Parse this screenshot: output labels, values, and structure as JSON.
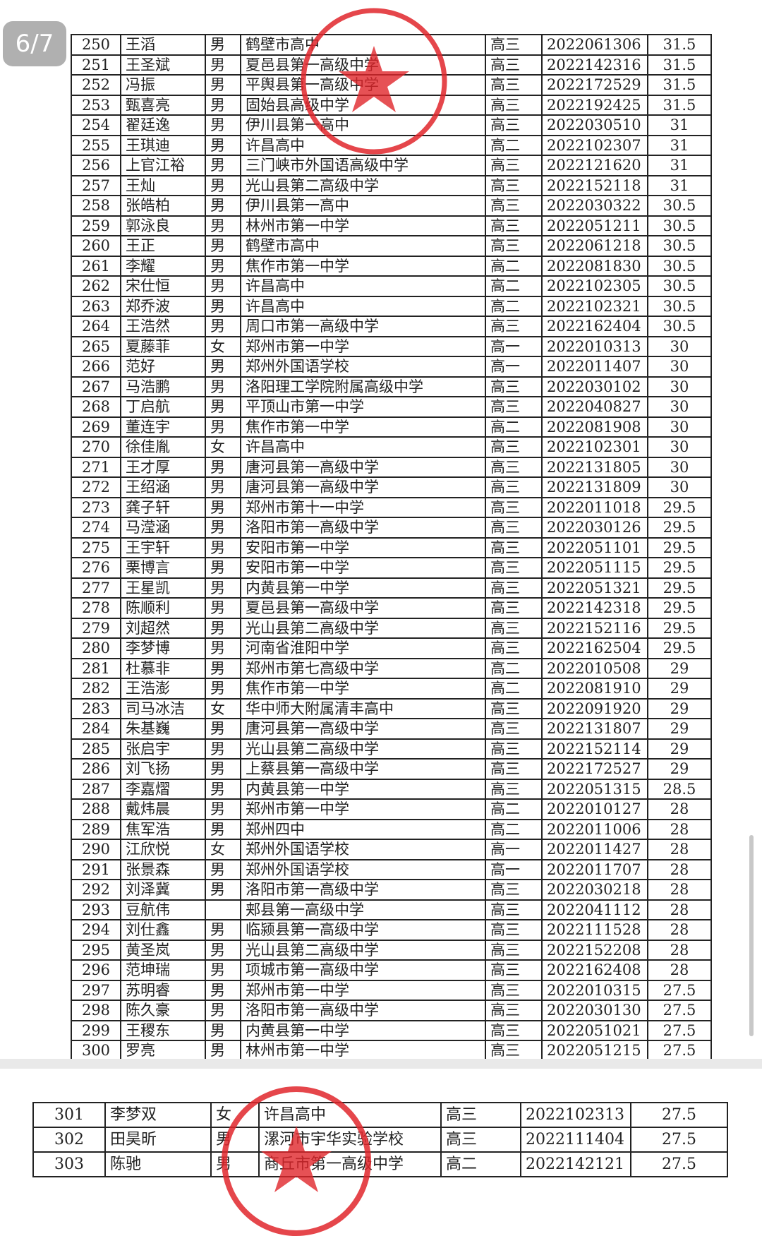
{
  "page_indicator": "6/7",
  "colors": {
    "stamp": "#e0262b",
    "table_border": "#222222",
    "separator": "#e9e9e9"
  },
  "main_rows": [
    [
      "250",
      "王滔",
      "男",
      "鹤壁市高中",
      "高三",
      "2022061306",
      "31.5"
    ],
    [
      "251",
      "王圣斌",
      "男",
      "夏邑县第一高级中学",
      "高三",
      "2022142316",
      "31.5"
    ],
    [
      "252",
      "冯振",
      "男",
      "平舆县第一高级中学",
      "高三",
      "2022172529",
      "31.5"
    ],
    [
      "253",
      "甄喜亮",
      "男",
      "固始县高级中学",
      "高三",
      "2022192425",
      "31.5"
    ],
    [
      "254",
      "翟廷逸",
      "男",
      "伊川县第一高中",
      "高三",
      "2022030510",
      "31"
    ],
    [
      "255",
      "王琪迪",
      "男",
      "许昌高中",
      "高二",
      "2022102307",
      "31"
    ],
    [
      "256",
      "上官江裕",
      "男",
      "三门峡市外国语高级中学",
      "高三",
      "2022121620",
      "31"
    ],
    [
      "257",
      "王灿",
      "男",
      "光山县第二高级中学",
      "高三",
      "2022152118",
      "31"
    ],
    [
      "258",
      "张皓柏",
      "男",
      "伊川县第一高中",
      "高三",
      "2022030322",
      "30.5"
    ],
    [
      "259",
      "郭泳良",
      "男",
      "林州市第一中学",
      "高三",
      "2022051211",
      "30.5"
    ],
    [
      "260",
      "王正",
      "男",
      "鹤壁市高中",
      "高三",
      "2022061218",
      "30.5"
    ],
    [
      "261",
      "李耀",
      "男",
      "焦作市第一中学",
      "高二",
      "2022081830",
      "30.5"
    ],
    [
      "262",
      "宋仕恒",
      "男",
      "许昌高中",
      "高二",
      "2022102305",
      "30.5"
    ],
    [
      "263",
      "郑乔波",
      "男",
      "许昌高中",
      "高二",
      "2022102321",
      "30.5"
    ],
    [
      "264",
      "王浩然",
      "男",
      "周口市第一高级中学",
      "高三",
      "2022162404",
      "30.5"
    ],
    [
      "265",
      "夏藤菲",
      "女",
      "郑州市第一中学",
      "高一",
      "2022010313",
      "30"
    ],
    [
      "266",
      "范好",
      "男",
      "郑州外国语学校",
      "高一",
      "2022011407",
      "30"
    ],
    [
      "267",
      "马浩鹏",
      "男",
      "洛阳理工学院附属高级中学",
      "高三",
      "2022030102",
      "30"
    ],
    [
      "268",
      "丁启航",
      "男",
      "平顶山市第一中学",
      "高三",
      "2022040827",
      "30"
    ],
    [
      "269",
      "董连宇",
      "男",
      "焦作市第一中学",
      "高二",
      "2022081908",
      "30"
    ],
    [
      "270",
      "徐佳胤",
      "女",
      "许昌高中",
      "高三",
      "2022102301",
      "30"
    ],
    [
      "271",
      "王才厚",
      "男",
      "唐河县第一高级中学",
      "高三",
      "2022131805",
      "30"
    ],
    [
      "272",
      "王绍涵",
      "男",
      "唐河县第一高级中学",
      "高三",
      "2022131809",
      "30"
    ],
    [
      "273",
      "龚子轩",
      "男",
      "郑州市第十一中学",
      "高三",
      "2022011018",
      "29.5"
    ],
    [
      "274",
      "马滢涵",
      "男",
      "洛阳市第一高级中学",
      "高三",
      "2022030126",
      "29.5"
    ],
    [
      "275",
      "王宇轩",
      "男",
      "安阳市第一中学",
      "高三",
      "2022051101",
      "29.5"
    ],
    [
      "276",
      "栗博言",
      "男",
      "安阳市第一中学",
      "高三",
      "2022051115",
      "29.5"
    ],
    [
      "277",
      "王星凯",
      "男",
      "内黄县第一中学",
      "高三",
      "2022051321",
      "29.5"
    ],
    [
      "278",
      "陈顺利",
      "男",
      "夏邑县第一高级中学",
      "高三",
      "2022142318",
      "29.5"
    ],
    [
      "279",
      "刘超然",
      "男",
      "光山县第二高级中学",
      "高三",
      "2022152116",
      "29.5"
    ],
    [
      "280",
      "李梦博",
      "男",
      "河南省淮阳中学",
      "高三",
      "2022162504",
      "29.5"
    ],
    [
      "281",
      "杜慕非",
      "男",
      "郑州市第七高级中学",
      "高二",
      "2022010508",
      "29"
    ],
    [
      "282",
      "王浩澎",
      "男",
      "焦作市第一中学",
      "高二",
      "2022081910",
      "29"
    ],
    [
      "283",
      "司马冰洁",
      "女",
      "华中师大附属清丰高中",
      "高三",
      "2022091920",
      "29"
    ],
    [
      "284",
      "朱基巍",
      "男",
      "唐河县第一高级中学",
      "高三",
      "2022131807",
      "29"
    ],
    [
      "285",
      "张启宇",
      "男",
      "光山县第二高级中学",
      "高三",
      "2022152114",
      "29"
    ],
    [
      "286",
      "刘飞扬",
      "男",
      "上蔡县第一高级中学",
      "高三",
      "2022172527",
      "29"
    ],
    [
      "287",
      "李嘉熠",
      "男",
      "内黄县第一中学",
      "高三",
      "2022051315",
      "28.5"
    ],
    [
      "288",
      "戴炜晨",
      "男",
      "郑州市第一中学",
      "高二",
      "2022010127",
      "28"
    ],
    [
      "289",
      "焦军浩",
      "男",
      "郑州四中",
      "高二",
      "2022011006",
      "28"
    ],
    [
      "290",
      "江欣悦",
      "女",
      "郑州外国语学校",
      "高一",
      "2022011427",
      "28"
    ],
    [
      "291",
      "张景森",
      "男",
      "郑州外国语学校",
      "高一",
      "2022011707",
      "28"
    ],
    [
      "292",
      "刘泽冀",
      "男",
      "洛阳市第一高级中学",
      "高三",
      "2022030218",
      "28"
    ],
    [
      "293",
      "豆航伟",
      "",
      "郏县第一高级中学",
      "高三",
      "2022041112",
      "28"
    ],
    [
      "294",
      "刘仕鑫",
      "男",
      "临颍县第一高级中学",
      "高三",
      "2022111528",
      "28"
    ],
    [
      "295",
      "黄圣岚",
      "男",
      "光山县第二高级中学",
      "高三",
      "2022152208",
      "28"
    ],
    [
      "296",
      "范坤瑞",
      "男",
      "项城市第一高级中学",
      "高三",
      "2022162408",
      "28"
    ],
    [
      "297",
      "苏明睿",
      "男",
      "郑州市第一中学",
      "高三",
      "2022010315",
      "27.5"
    ],
    [
      "298",
      "陈久豪",
      "男",
      "洛阳市第一高级中学",
      "高三",
      "2022030130",
      "27.5"
    ],
    [
      "299",
      "王稷东",
      "男",
      "内黄县第一中学",
      "高三",
      "2022051021",
      "27.5"
    ],
    [
      "300",
      "罗亮",
      "男",
      "林州市第一中学",
      "高三",
      "2022051215",
      "27.5"
    ]
  ],
  "bottom_rows": [
    [
      "301",
      "李梦双",
      "女",
      "许昌高中",
      "高三",
      "2022102313",
      "27.5"
    ],
    [
      "302",
      "田昊昕",
      "男",
      "漯河市宇华实验学校",
      "高三",
      "2022111404",
      "27.5"
    ],
    [
      "303",
      "陈驰",
      "男",
      "商丘市第一高级中学",
      "高二",
      "2022142121",
      "27.5"
    ]
  ]
}
